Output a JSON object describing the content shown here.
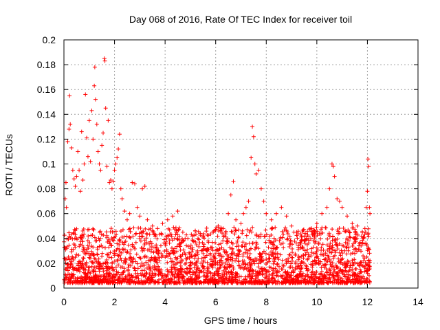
{
  "chart_data": {
    "type": "scatter",
    "title": "Day 068 of 2016, Rate Of TEC Index for receiver toil",
    "xlabel": "GPS time / hours",
    "ylabel": "ROTI / TECUs",
    "xlim": [
      0,
      14
    ],
    "ylim": [
      0,
      0.2
    ],
    "x_ticks": [
      0,
      2,
      4,
      6,
      8,
      10,
      12,
      14
    ],
    "y_ticks": [
      0,
      0.02,
      0.04,
      0.06,
      0.08,
      0.1,
      0.12,
      0.14,
      0.16,
      0.18,
      0.2
    ],
    "x_tick_labels": [
      "0",
      "2",
      "4",
      "6",
      "8",
      "10",
      "12",
      "14"
    ],
    "y_tick_labels": [
      "0",
      "0.02",
      "0.04",
      "0.06",
      "0.08",
      "0.1",
      "0.12",
      "0.14",
      "0.16",
      "0.18",
      "0.2"
    ],
    "grid": true,
    "marker": "+",
    "series_color": "#ff0000",
    "series": [
      {
        "name": "ROTI",
        "points": [
          [
            0.05,
            0.072
          ],
          [
            0.08,
            0.085
          ],
          [
            0.1,
            0.065
          ],
          [
            0.15,
            0.118
          ],
          [
            0.2,
            0.128
          ],
          [
            0.22,
            0.155
          ],
          [
            0.25,
            0.132
          ],
          [
            0.3,
            0.113
          ],
          [
            0.35,
            0.095
          ],
          [
            0.4,
            0.088
          ],
          [
            0.45,
            0.082
          ],
          [
            0.5,
            0.09
          ],
          [
            0.55,
            0.11
          ],
          [
            0.6,
            0.095
          ],
          [
            0.65,
            0.078
          ],
          [
            0.7,
            0.126
          ],
          [
            0.75,
            0.087
          ],
          [
            0.8,
            0.1
          ],
          [
            0.85,
            0.156
          ],
          [
            0.9,
            0.121
          ],
          [
            0.95,
            0.106
          ],
          [
            1.0,
            0.135
          ],
          [
            1.05,
            0.102
          ],
          [
            1.1,
            0.143
          ],
          [
            1.15,
            0.12
          ],
          [
            1.2,
            0.163
          ],
          [
            1.22,
            0.178
          ],
          [
            1.25,
            0.152
          ],
          [
            1.3,
            0.132
          ],
          [
            1.35,
            0.11
          ],
          [
            1.4,
            0.1
          ],
          [
            1.45,
            0.095
          ],
          [
            1.5,
            0.115
          ],
          [
            1.55,
            0.125
          ],
          [
            1.6,
            0.185
          ],
          [
            1.62,
            0.183
          ],
          [
            1.65,
            0.145
          ],
          [
            1.7,
            0.098
          ],
          [
            1.75,
            0.135
          ],
          [
            1.8,
            0.085
          ],
          [
            1.85,
            0.087
          ],
          [
            1.9,
            0.08
          ],
          [
            1.95,
            0.086
          ],
          [
            2.0,
            0.095
          ],
          [
            2.05,
            0.1
          ],
          [
            2.1,
            0.105
          ],
          [
            2.15,
            0.112
          ],
          [
            2.2,
            0.124
          ],
          [
            2.25,
            0.08
          ],
          [
            2.3,
            0.072
          ],
          [
            2.4,
            0.062
          ],
          [
            2.5,
            0.055
          ],
          [
            2.6,
            0.06
          ],
          [
            2.7,
            0.085
          ],
          [
            2.8,
            0.084
          ],
          [
            2.9,
            0.065
          ],
          [
            3.0,
            0.058
          ],
          [
            3.1,
            0.08
          ],
          [
            3.2,
            0.082
          ],
          [
            3.3,
            0.055
          ],
          [
            3.5,
            0.05
          ],
          [
            3.7,
            0.048
          ],
          [
            3.9,
            0.052
          ],
          [
            4.1,
            0.055
          ],
          [
            4.3,
            0.058
          ],
          [
            4.5,
            0.062
          ],
          [
            4.7,
            0.045
          ],
          [
            4.9,
            0.04
          ],
          [
            5.1,
            0.038
          ],
          [
            5.3,
            0.04
          ],
          [
            5.5,
            0.042
          ],
          [
            5.7,
            0.038
          ],
          [
            5.9,
            0.045
          ],
          [
            6.1,
            0.05
          ],
          [
            6.3,
            0.048
          ],
          [
            6.5,
            0.06
          ],
          [
            6.6,
            0.075
          ],
          [
            6.7,
            0.086
          ],
          [
            6.8,
            0.055
          ],
          [
            7.0,
            0.052
          ],
          [
            7.1,
            0.06
          ],
          [
            7.2,
            0.065
          ],
          [
            7.3,
            0.07
          ],
          [
            7.4,
            0.105
          ],
          [
            7.45,
            0.13
          ],
          [
            7.5,
            0.122
          ],
          [
            7.55,
            0.1
          ],
          [
            7.6,
            0.092
          ],
          [
            7.7,
            0.095
          ],
          [
            7.8,
            0.08
          ],
          [
            7.9,
            0.07
          ],
          [
            8.0,
            0.06
          ],
          [
            8.2,
            0.055
          ],
          [
            8.4,
            0.06
          ],
          [
            8.6,
            0.065
          ],
          [
            8.8,
            0.058
          ],
          [
            9.0,
            0.05
          ],
          [
            9.2,
            0.045
          ],
          [
            9.4,
            0.042
          ],
          [
            9.6,
            0.04
          ],
          [
            9.8,
            0.048
          ],
          [
            10.0,
            0.052
          ],
          [
            10.2,
            0.06
          ],
          [
            10.4,
            0.065
          ],
          [
            10.5,
            0.08
          ],
          [
            10.6,
            0.1
          ],
          [
            10.65,
            0.098
          ],
          [
            10.7,
            0.09
          ],
          [
            10.8,
            0.072
          ],
          [
            10.9,
            0.07
          ],
          [
            11.0,
            0.065
          ],
          [
            11.2,
            0.058
          ],
          [
            11.4,
            0.052
          ],
          [
            11.6,
            0.05
          ],
          [
            11.8,
            0.045
          ],
          [
            11.9,
            0.048
          ],
          [
            11.95,
            0.065
          ],
          [
            12.0,
            0.078
          ],
          [
            12.02,
            0.104
          ],
          [
            12.05,
            0.098
          ],
          [
            12.08,
            0.065
          ],
          [
            12.1,
            0.06
          ]
        ]
      }
    ]
  }
}
